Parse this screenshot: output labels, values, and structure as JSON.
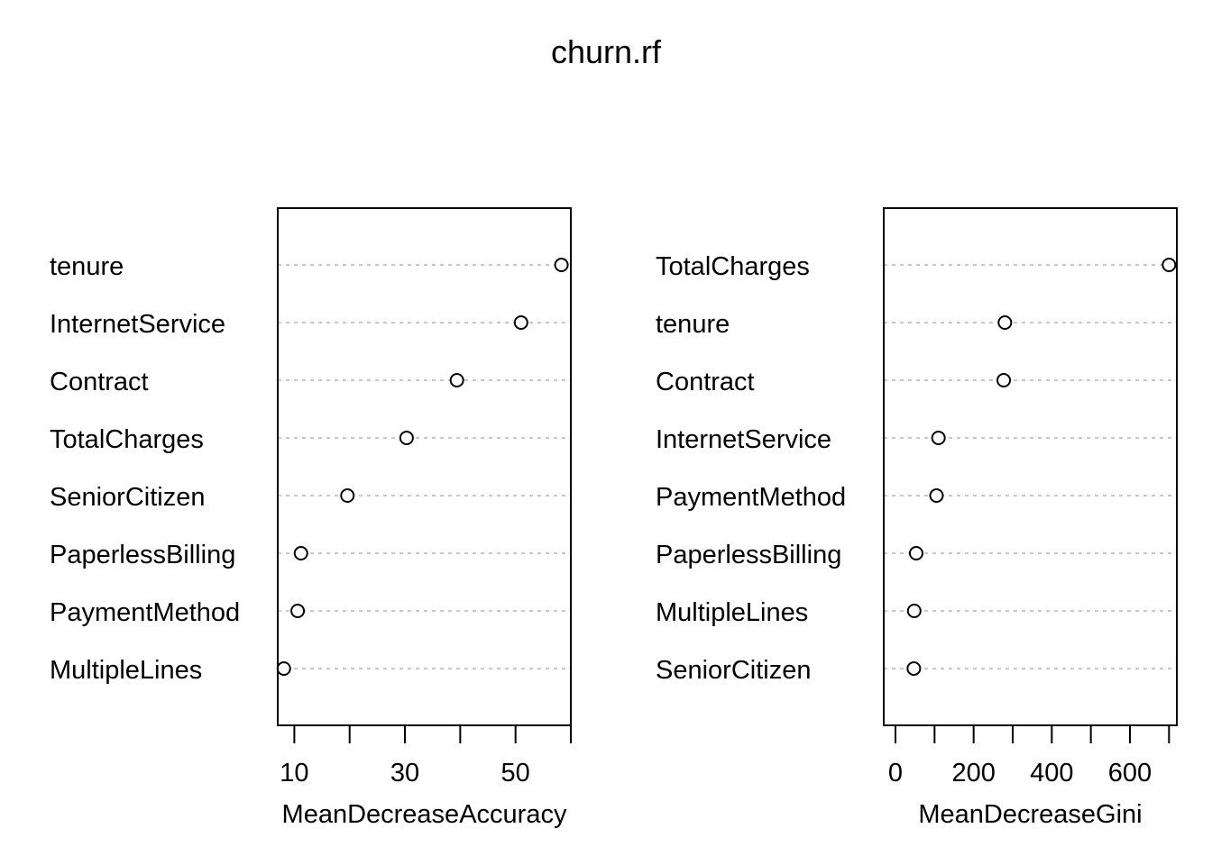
{
  "title": "churn.rf",
  "chart_data": [
    {
      "type": "scatter",
      "xlabel": "MeanDecreaseAccuracy",
      "xlim": [
        7,
        60
      ],
      "xticks": [
        10,
        20,
        30,
        40,
        50,
        60
      ],
      "xtick_labels": [
        "10",
        "",
        "30",
        "",
        "50",
        ""
      ],
      "categories": [
        "tenure",
        "InternetService",
        "Contract",
        "TotalCharges",
        "SeniorCitizen",
        "PaperlessBilling",
        "PaymentMethod",
        "MultipleLines"
      ],
      "values": [
        58.3,
        51.0,
        39.4,
        30.3,
        19.6,
        11.2,
        10.6,
        8.1
      ],
      "grid": "dotted horizontal guides"
    },
    {
      "type": "scatter",
      "xlabel": "MeanDecreaseGini",
      "xlim": [
        -30,
        720
      ],
      "xticks": [
        0,
        100,
        200,
        300,
        400,
        500,
        600,
        700
      ],
      "xtick_labels": [
        "0",
        "",
        "200",
        "",
        "400",
        "",
        "600",
        ""
      ],
      "categories": [
        "TotalCharges",
        "tenure",
        "Contract",
        "InternetService",
        "PaymentMethod",
        "PaperlessBilling",
        "MultipleLines",
        "SeniorCitizen"
      ],
      "values": [
        700,
        280,
        277,
        110,
        105,
        53,
        48,
        47
      ],
      "grid": "dotted horizontal guides"
    }
  ]
}
